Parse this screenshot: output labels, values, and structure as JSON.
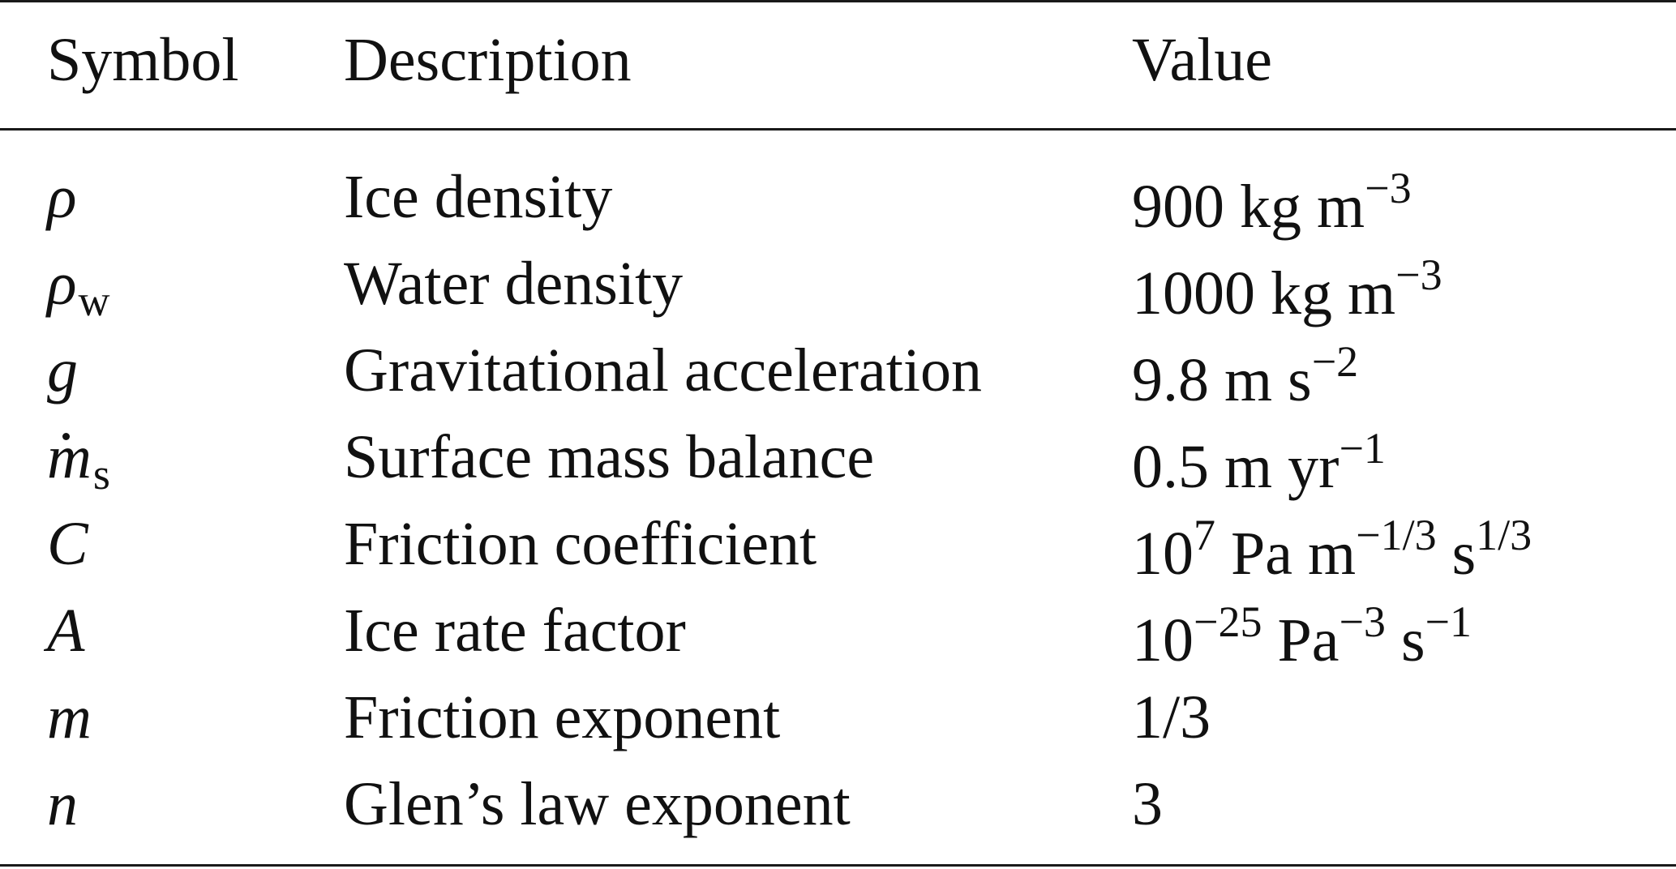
{
  "table": {
    "headers": {
      "symbol": "Symbol",
      "description": "Description",
      "value": "Value"
    },
    "rows": [
      {
        "symbol": "ρ",
        "symbol_sub": "",
        "description": "Ice density",
        "value_main": "900 kg m",
        "value_sup1": "−3",
        "value_mid": "",
        "value_sup2": "",
        "value_tail": "",
        "value_sup3": ""
      },
      {
        "symbol": "ρ",
        "symbol_sub": "w",
        "description": "Water density",
        "value_main": "1000 kg m",
        "value_sup1": "−3",
        "value_mid": "",
        "value_sup2": "",
        "value_tail": "",
        "value_sup3": ""
      },
      {
        "symbol": "g",
        "symbol_sub": "",
        "description": "Gravitational acceleration",
        "value_main": "9.8 m s",
        "value_sup1": "−2",
        "value_mid": "",
        "value_sup2": "",
        "value_tail": "",
        "value_sup3": ""
      },
      {
        "symbol": "m",
        "symbol_sub": "s",
        "description": "Surface mass balance",
        "value_main": "0.5 m yr",
        "value_sup1": "−1",
        "value_mid": "",
        "value_sup2": "",
        "value_tail": "",
        "value_sup3": ""
      },
      {
        "symbol": "C",
        "symbol_sub": "",
        "description": "Friction coefficient",
        "value_main": "10",
        "value_sup1": "7",
        "value_mid": " Pa m",
        "value_sup2": "−1/3",
        "value_tail": " s",
        "value_sup3": "1/3"
      },
      {
        "symbol": "A",
        "symbol_sub": "",
        "description": "Ice rate factor",
        "value_main": "10",
        "value_sup1": "−25",
        "value_mid": " Pa",
        "value_sup2": "−3",
        "value_tail": " s",
        "value_sup3": "−1"
      },
      {
        "symbol": "m",
        "symbol_sub": "",
        "description": "Friction exponent",
        "value_main": "1/3",
        "value_sup1": "",
        "value_mid": "",
        "value_sup2": "",
        "value_tail": "",
        "value_sup3": ""
      },
      {
        "symbol": "n",
        "symbol_sub": "",
        "description": "Glen’s law exponent",
        "value_main": "3",
        "value_sup1": "",
        "value_mid": "",
        "value_sup2": "",
        "value_tail": "",
        "value_sup3": ""
      }
    ]
  }
}
